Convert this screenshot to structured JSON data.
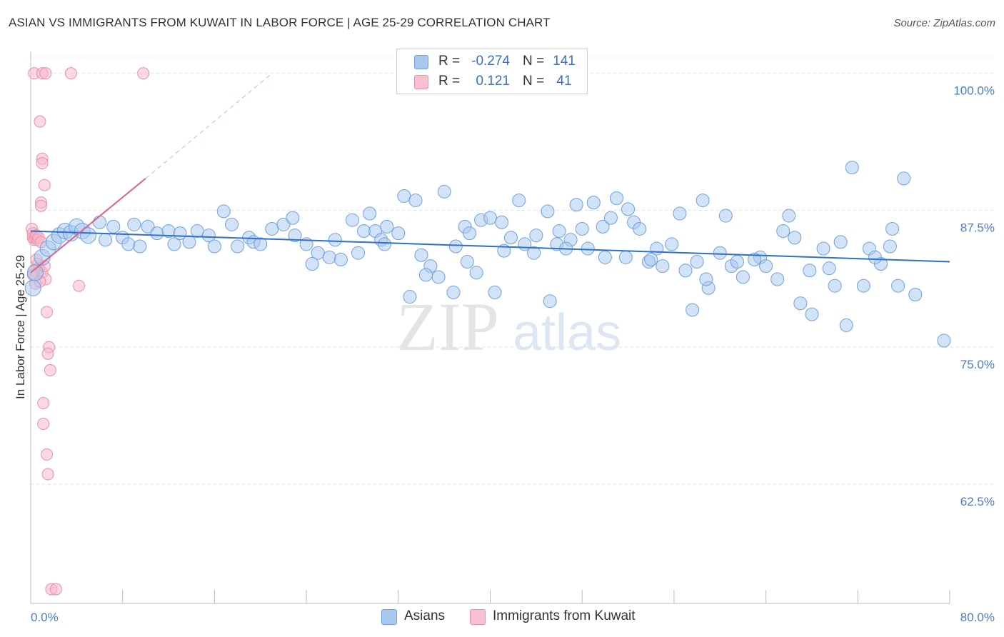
{
  "chart_data": {
    "type": "scatter",
    "title": "ASIAN VS IMMIGRANTS FROM KUWAIT IN LABOR FORCE | AGE 25-29 CORRELATION CHART",
    "source": "Source: ZipAtlas.com",
    "xlabel": "",
    "ylabel": "In Labor Force | Age 25-29",
    "xlim": [
      0,
      80
    ],
    "ylim": [
      51.6,
      102.0
    ],
    "x_tick_labels": [
      "0.0%",
      "80.0%"
    ],
    "y_ticks": [
      62.5,
      75.0,
      87.5,
      100.0
    ],
    "y_tick_labels": [
      "62.5%",
      "75.0%",
      "87.5%",
      "100.0%"
    ],
    "watermark": {
      "zip": "ZIP",
      "atlas": "atlas"
    },
    "legend": {
      "rows": [
        {
          "r_label": "R =",
          "r_value": "-0.274",
          "n_label": "N =",
          "n_value": "141"
        },
        {
          "r_label": "R =",
          "r_value": "0.121",
          "n_label": "N =",
          "n_value": "41"
        }
      ]
    },
    "series": [
      {
        "name": "Asians",
        "color": "#a8c8f0",
        "stroke": "#6fa0e0",
        "trend_color": "#2e6fd0",
        "trend": {
          "x0": 0,
          "y0": 85.6,
          "x1": 80,
          "y1": 82.8
        },
        "points": [
          [
            0.2,
            80.4
          ],
          [
            0.4,
            81.8
          ],
          [
            1.0,
            83.2
          ],
          [
            1.5,
            84.0
          ],
          [
            2.0,
            84.6
          ],
          [
            2.5,
            85.2
          ],
          [
            3.0,
            85.6
          ],
          [
            3.5,
            85.4
          ],
          [
            4.0,
            86.0
          ],
          [
            4.5,
            85.6
          ],
          [
            5.0,
            85.2
          ],
          [
            6.0,
            86.4
          ],
          [
            6.5,
            84.8
          ],
          [
            7.2,
            86.0
          ],
          [
            8.0,
            85.0
          ],
          [
            8.5,
            84.4
          ],
          [
            9.0,
            86.2
          ],
          [
            9.5,
            84.2
          ],
          [
            10.2,
            86.0
          ],
          [
            11.0,
            85.4
          ],
          [
            12.0,
            85.6
          ],
          [
            12.5,
            84.4
          ],
          [
            13.0,
            85.4
          ],
          [
            13.8,
            84.6
          ],
          [
            14.5,
            85.6
          ],
          [
            15.5,
            85.2
          ],
          [
            16.0,
            84.2
          ],
          [
            16.8,
            87.4
          ],
          [
            17.5,
            86.2
          ],
          [
            18.0,
            84.2
          ],
          [
            19.0,
            85.0
          ],
          [
            19.4,
            84.6
          ],
          [
            20.0,
            84.4
          ],
          [
            21.0,
            85.8
          ],
          [
            22.0,
            86.2
          ],
          [
            22.8,
            86.8
          ],
          [
            23.0,
            85.2
          ],
          [
            24.0,
            84.4
          ],
          [
            25.0,
            83.6
          ],
          [
            26.0,
            83.2
          ],
          [
            26.5,
            84.8
          ],
          [
            27.0,
            83.0
          ],
          [
            28.0,
            86.6
          ],
          [
            29.0,
            85.6
          ],
          [
            29.5,
            87.2
          ],
          [
            30.0,
            85.6
          ],
          [
            30.5,
            84.8
          ],
          [
            31.0,
            86.0
          ],
          [
            32.0,
            85.4
          ],
          [
            32.5,
            88.8
          ],
          [
            33.5,
            88.4
          ],
          [
            34.0,
            83.4
          ],
          [
            34.8,
            82.4
          ],
          [
            35.5,
            81.4
          ],
          [
            36.0,
            89.2
          ],
          [
            36.8,
            80.0
          ],
          [
            37.0,
            84.2
          ],
          [
            37.8,
            86.0
          ],
          [
            38.2,
            85.4
          ],
          [
            38.8,
            81.8
          ],
          [
            39.2,
            86.6
          ],
          [
            40.0,
            86.8
          ],
          [
            40.4,
            80.0
          ],
          [
            41.0,
            86.4
          ],
          [
            41.8,
            85.0
          ],
          [
            42.5,
            88.4
          ],
          [
            43.0,
            84.4
          ],
          [
            43.8,
            83.6
          ],
          [
            44.0,
            85.2
          ],
          [
            45.0,
            87.4
          ],
          [
            45.8,
            84.4
          ],
          [
            46.0,
            85.6
          ],
          [
            47.0,
            84.8
          ],
          [
            47.5,
            88.0
          ],
          [
            48.0,
            85.8
          ],
          [
            48.5,
            84.0
          ],
          [
            49.0,
            88.2
          ],
          [
            49.8,
            86.0
          ],
          [
            50.5,
            86.8
          ],
          [
            51.0,
            88.6
          ],
          [
            51.8,
            83.2
          ],
          [
            52.5,
            86.4
          ],
          [
            53.0,
            85.8
          ],
          [
            53.8,
            82.8
          ],
          [
            54.5,
            84.0
          ],
          [
            55.0,
            82.4
          ],
          [
            56.5,
            87.2
          ],
          [
            57.0,
            82.0
          ],
          [
            58.0,
            82.8
          ],
          [
            58.5,
            88.4
          ],
          [
            59.0,
            80.4
          ],
          [
            60.0,
            83.6
          ],
          [
            61.0,
            82.4
          ],
          [
            62.0,
            81.4
          ],
          [
            63.5,
            83.2
          ],
          [
            64.0,
            82.4
          ],
          [
            65.0,
            81.2
          ],
          [
            66.0,
            87.0
          ],
          [
            67.0,
            79.0
          ],
          [
            68.0,
            78.0
          ],
          [
            69.0,
            84.0
          ],
          [
            70.0,
            80.6
          ],
          [
            71.0,
            77.0
          ],
          [
            72.5,
            80.6
          ],
          [
            74.0,
            82.6
          ],
          [
            74.8,
            84.2
          ],
          [
            75.5,
            80.6
          ],
          [
            77.0,
            79.8
          ],
          [
            79.5,
            75.6
          ],
          [
            61.5,
            82.8
          ],
          [
            63.0,
            83.0
          ],
          [
            65.5,
            85.6
          ],
          [
            69.5,
            82.2
          ],
          [
            71.5,
            91.4
          ],
          [
            73.0,
            84.0
          ],
          [
            75.0,
            85.8
          ],
          [
            73.5,
            83.2
          ],
          [
            33.0,
            79.6
          ],
          [
            45.2,
            79.2
          ],
          [
            60.5,
            87.0
          ],
          [
            66.5,
            85.0
          ],
          [
            50.0,
            83.2
          ],
          [
            55.8,
            84.4
          ],
          [
            58.8,
            81.2
          ],
          [
            24.5,
            82.6
          ],
          [
            28.5,
            83.6
          ],
          [
            30.8,
            84.4
          ],
          [
            34.4,
            81.6
          ],
          [
            38.0,
            82.8
          ],
          [
            41.2,
            83.8
          ],
          [
            46.6,
            84.0
          ],
          [
            52.0,
            87.6
          ],
          [
            54.0,
            83.0
          ],
          [
            57.6,
            78.4
          ],
          [
            67.8,
            82.0
          ],
          [
            70.5,
            84.6
          ],
          [
            76.0,
            90.4
          ]
        ]
      },
      {
        "name": "Immigrants from Kuwait",
        "color": "#f8b8cc",
        "stroke": "#e890a8",
        "trend_color": "#e0608a",
        "trend": {
          "x0": 0,
          "y0": 81.8,
          "x1": 10,
          "y1": 90.4
        },
        "trend_dashed": {
          "x0": 10,
          "y0": 90.4,
          "x1": 21,
          "y1": 100.0
        },
        "points": [
          [
            0.3,
            100.0
          ],
          [
            1.0,
            100.0
          ],
          [
            1.3,
            100.0
          ],
          [
            3.5,
            100.0
          ],
          [
            9.8,
            100.0
          ],
          [
            0.8,
            95.6
          ],
          [
            1.0,
            92.2
          ],
          [
            1.0,
            91.8
          ],
          [
            1.2,
            89.8
          ],
          [
            0.9,
            88.2
          ],
          [
            0.9,
            87.9
          ],
          [
            0.1,
            85.8
          ],
          [
            0.2,
            85.4
          ],
          [
            0.2,
            85.0
          ],
          [
            0.3,
            84.8
          ],
          [
            0.4,
            85.0
          ],
          [
            0.5,
            85.2
          ],
          [
            0.6,
            84.8
          ],
          [
            0.7,
            85.0
          ],
          [
            0.6,
            82.6
          ],
          [
            0.7,
            82.2
          ],
          [
            1.0,
            81.8
          ],
          [
            1.3,
            81.2
          ],
          [
            0.4,
            80.8
          ],
          [
            4.2,
            80.6
          ],
          [
            1.4,
            78.2
          ],
          [
            1.6,
            75.0
          ],
          [
            1.5,
            74.4
          ],
          [
            1.7,
            72.9
          ],
          [
            1.1,
            69.9
          ],
          [
            1.1,
            68.0
          ],
          [
            1.4,
            65.2
          ],
          [
            1.5,
            63.4
          ],
          [
            1.8,
            52.9
          ],
          [
            2.2,
            52.9
          ],
          [
            0.3,
            82.0
          ],
          [
            0.5,
            83.0
          ],
          [
            0.2,
            81.6
          ],
          [
            1.2,
            82.4
          ],
          [
            0.8,
            81.0
          ],
          [
            0.9,
            84.6
          ]
        ]
      }
    ]
  }
}
